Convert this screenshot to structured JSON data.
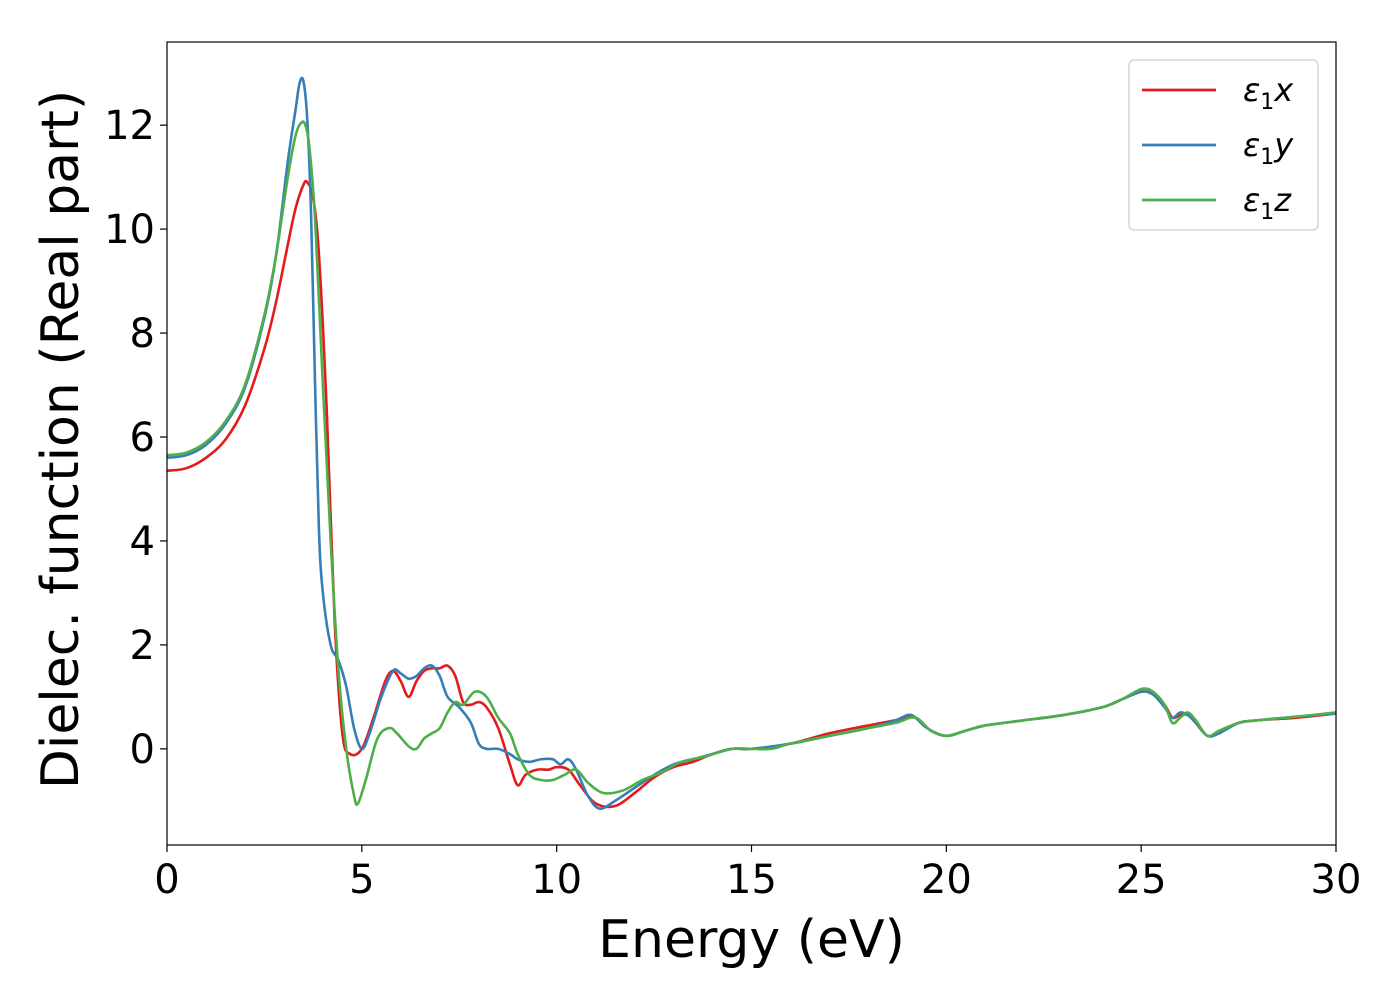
{
  "chart_data": {
    "type": "line",
    "title": "",
    "xlabel": "Energy (eV)",
    "ylabel": "Dielec. function (Real part)",
    "xlim": [
      0,
      30
    ],
    "ylim": [
      -1.85,
      13.6
    ],
    "xticks": [
      0,
      5,
      10,
      15,
      20,
      25,
      30
    ],
    "yticks": [
      0,
      2,
      4,
      6,
      8,
      10,
      12
    ],
    "grid": false,
    "legend_position": "top-right",
    "series": [
      {
        "name": "ε1x",
        "legend_sub": "1",
        "legend_base": "ε",
        "legend_suffix": "x",
        "color": "#e41a1c",
        "x": [
          0,
          0.5,
          1.0,
          1.5,
          2.0,
          2.5,
          2.8,
          3.1,
          3.3,
          3.5,
          3.6,
          3.75,
          3.9,
          4.1,
          4.3,
          4.5,
          4.7,
          5.0,
          5.3,
          5.6,
          5.8,
          6.0,
          6.2,
          6.4,
          6.6,
          6.8,
          7.0,
          7.2,
          7.4,
          7.6,
          7.8,
          8.0,
          8.2,
          8.5,
          8.8,
          9.0,
          9.2,
          9.5,
          9.8,
          10.0,
          10.3,
          10.6,
          11.0,
          11.5,
          12.0,
          12.5,
          13.0,
          13.5,
          14.0,
          14.5,
          15.0,
          16.0,
          17.0,
          18.0,
          18.7,
          19.2,
          19.6,
          20.0,
          20.5,
          21.0,
          22.0,
          23.0,
          24.0,
          24.5,
          25.0,
          25.3,
          25.6,
          25.8,
          26.0,
          26.2,
          26.4,
          26.7,
          27.0,
          27.5,
          28.0,
          29.0,
          30.0
        ],
        "values": [
          5.35,
          5.4,
          5.6,
          5.95,
          6.6,
          7.7,
          8.6,
          9.7,
          10.4,
          10.85,
          10.9,
          10.6,
          9.5,
          6.5,
          2.5,
          0.3,
          -0.1,
          0.0,
          0.6,
          1.3,
          1.5,
          1.3,
          1.0,
          1.3,
          1.5,
          1.55,
          1.55,
          1.6,
          1.4,
          0.9,
          0.85,
          0.9,
          0.8,
          0.4,
          -0.3,
          -0.7,
          -0.5,
          -0.4,
          -0.4,
          -0.35,
          -0.4,
          -0.7,
          -1.05,
          -1.1,
          -0.85,
          -0.55,
          -0.35,
          -0.25,
          -0.1,
          0.0,
          0.0,
          0.1,
          0.3,
          0.45,
          0.55,
          0.6,
          0.35,
          0.25,
          0.35,
          0.45,
          0.55,
          0.65,
          0.8,
          0.95,
          1.1,
          1.05,
          0.85,
          0.6,
          0.65,
          0.65,
          0.5,
          0.25,
          0.3,
          0.5,
          0.55,
          0.6,
          0.68
        ]
      },
      {
        "name": "ε1y",
        "legend_sub": "1",
        "legend_base": "ε",
        "legend_suffix": "y",
        "color": "#377eb8",
        "x": [
          0,
          0.5,
          1.0,
          1.5,
          2.0,
          2.5,
          2.8,
          3.1,
          3.3,
          3.4,
          3.5,
          3.6,
          3.7,
          3.8,
          3.9,
          4.0,
          4.2,
          4.4,
          4.6,
          4.8,
          5.0,
          5.2,
          5.5,
          5.8,
          6.0,
          6.2,
          6.4,
          6.6,
          6.8,
          7.0,
          7.2,
          7.5,
          7.8,
          8.0,
          8.2,
          8.5,
          8.8,
          9.0,
          9.3,
          9.6,
          9.9,
          10.1,
          10.3,
          10.5,
          10.8,
          11.1,
          11.5,
          12.0,
          12.5,
          13.0,
          13.5,
          14.0,
          14.5,
          15.0,
          16.0,
          17.0,
          18.0,
          18.7,
          19.1,
          19.5,
          20.0,
          20.5,
          21.0,
          22.0,
          23.0,
          24.0,
          24.5,
          25.0,
          25.3,
          25.6,
          25.8,
          26.0,
          26.2,
          26.4,
          26.7,
          27.0,
          27.5,
          28.0,
          29.0,
          30.0
        ],
        "values": [
          5.6,
          5.65,
          5.85,
          6.25,
          6.95,
          8.3,
          9.5,
          11.3,
          12.3,
          12.8,
          12.85,
          12.1,
          10.2,
          7.0,
          4.2,
          3.0,
          2.0,
          1.7,
          1.2,
          0.4,
          0.0,
          0.3,
          1.0,
          1.5,
          1.45,
          1.35,
          1.4,
          1.55,
          1.6,
          1.4,
          1.0,
          0.8,
          0.5,
          0.1,
          0.0,
          0.0,
          -0.1,
          -0.2,
          -0.25,
          -0.2,
          -0.2,
          -0.3,
          -0.2,
          -0.4,
          -0.9,
          -1.15,
          -1.0,
          -0.75,
          -0.5,
          -0.3,
          -0.2,
          -0.1,
          0.0,
          0.0,
          0.1,
          0.25,
          0.4,
          0.55,
          0.65,
          0.4,
          0.25,
          0.35,
          0.45,
          0.55,
          0.65,
          0.8,
          0.95,
          1.1,
          1.05,
          0.8,
          0.6,
          0.7,
          0.65,
          0.5,
          0.25,
          0.3,
          0.5,
          0.55,
          0.62,
          0.68
        ]
      },
      {
        "name": "ε1z",
        "legend_sub": "1",
        "legend_base": "ε",
        "legend_suffix": "z",
        "color": "#4daf4a",
        "x": [
          0,
          0.5,
          1.0,
          1.5,
          2.0,
          2.5,
          2.8,
          3.1,
          3.3,
          3.45,
          3.55,
          3.65,
          3.8,
          4.0,
          4.2,
          4.4,
          4.6,
          4.8,
          4.9,
          5.1,
          5.4,
          5.7,
          5.9,
          6.2,
          6.4,
          6.6,
          6.8,
          7.0,
          7.2,
          7.4,
          7.6,
          7.9,
          8.2,
          8.5,
          8.8,
          9.0,
          9.3,
          9.6,
          9.9,
          10.2,
          10.5,
          10.8,
          11.2,
          11.7,
          12.2,
          12.7,
          13.2,
          13.8,
          14.5,
          15.0,
          15.5,
          16.0,
          17.0,
          18.0,
          18.7,
          19.2,
          19.6,
          20.0,
          20.5,
          21.0,
          22.0,
          23.0,
          24.0,
          24.5,
          25.0,
          25.3,
          25.6,
          25.8,
          26.0,
          26.2,
          26.4,
          26.7,
          27.0,
          27.5,
          28.0,
          29.0,
          30.0
        ],
        "values": [
          5.65,
          5.7,
          5.9,
          6.3,
          7.0,
          8.35,
          9.5,
          11.0,
          11.8,
          12.05,
          12.0,
          11.6,
          10.2,
          7.0,
          4.0,
          1.5,
          0.0,
          -0.9,
          -1.05,
          -0.6,
          0.2,
          0.4,
          0.3,
          0.05,
          0.0,
          0.2,
          0.3,
          0.4,
          0.7,
          0.9,
          0.85,
          1.1,
          1.0,
          0.6,
          0.3,
          -0.1,
          -0.5,
          -0.6,
          -0.6,
          -0.5,
          -0.4,
          -0.65,
          -0.85,
          -0.8,
          -0.6,
          -0.45,
          -0.25,
          -0.15,
          0.0,
          0.0,
          0.0,
          0.1,
          0.25,
          0.4,
          0.5,
          0.6,
          0.35,
          0.25,
          0.35,
          0.45,
          0.55,
          0.65,
          0.8,
          0.95,
          1.15,
          1.1,
          0.85,
          0.5,
          0.6,
          0.7,
          0.55,
          0.25,
          0.35,
          0.5,
          0.55,
          0.62,
          0.7
        ]
      }
    ]
  }
}
